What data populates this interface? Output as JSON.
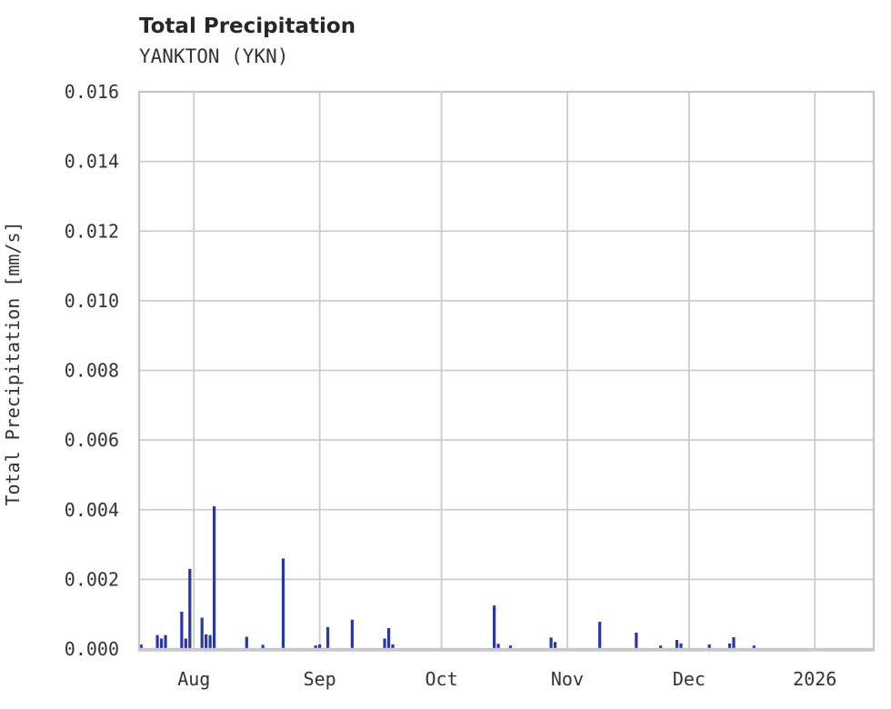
{
  "header": {
    "title": "Total Precipitation",
    "subtitle": "YANKTON (YKN)"
  },
  "colors": {
    "bar": "#2a35a6",
    "grid": "#cccccc",
    "spine": "#c6c6c6",
    "axis_bottom": "#c9c9c9",
    "title_text": "#262626",
    "tick_text": "#333333",
    "background": "#ffffff"
  },
  "chart_data": {
    "type": "bar",
    "title": "Total Precipitation",
    "subtitle": "YANKTON (YKN)",
    "station": "YANKTON (YKN)",
    "xlabel": "",
    "ylabel": "Total Precipitation [mm/s]",
    "unit": "mm/s",
    "grid": true,
    "legend": "none",
    "ylim": [
      0,
      0.016
    ],
    "y_ticks": [
      {
        "value": 0.0,
        "label": "0.000"
      },
      {
        "value": 0.002,
        "label": "0.002"
      },
      {
        "value": 0.004,
        "label": "0.004"
      },
      {
        "value": 0.006,
        "label": "0.006"
      },
      {
        "value": 0.008,
        "label": "0.008"
      },
      {
        "value": 0.01,
        "label": "0.010"
      },
      {
        "value": 0.012,
        "label": "0.012"
      },
      {
        "value": 0.014,
        "label": "0.014"
      },
      {
        "value": 0.016,
        "label": "0.016"
      }
    ],
    "x_domain": [
      "2025-07-18",
      "2026-01-15"
    ],
    "x_ticks": [
      {
        "date": "2025-08-01",
        "label": "Aug"
      },
      {
        "date": "2025-09-01",
        "label": "Sep"
      },
      {
        "date": "2025-10-01",
        "label": "Oct"
      },
      {
        "date": "2025-11-01",
        "label": "Nov"
      },
      {
        "date": "2025-12-01",
        "label": "Dec"
      },
      {
        "date": "2026-01-01",
        "label": "2026"
      }
    ],
    "points": [
      {
        "date": "2025-07-19",
        "value": 0.00013
      },
      {
        "date": "2025-07-23",
        "value": 0.0004
      },
      {
        "date": "2025-07-24",
        "value": 0.0003
      },
      {
        "date": "2025-07-25",
        "value": 0.0004
      },
      {
        "date": "2025-07-29",
        "value": 0.00107
      },
      {
        "date": "2025-07-30",
        "value": 0.0003
      },
      {
        "date": "2025-07-31",
        "value": 0.0023
      },
      {
        "date": "2025-08-03",
        "value": 0.0009
      },
      {
        "date": "2025-08-04",
        "value": 0.00042
      },
      {
        "date": "2025-08-05",
        "value": 0.0004
      },
      {
        "date": "2025-08-06",
        "value": 0.0041
      },
      {
        "date": "2025-08-14",
        "value": 0.00035
      },
      {
        "date": "2025-08-18",
        "value": 0.00012
      },
      {
        "date": "2025-08-23",
        "value": 0.0026
      },
      {
        "date": "2025-08-31",
        "value": 0.0001
      },
      {
        "date": "2025-09-01",
        "value": 0.00013
      },
      {
        "date": "2025-09-03",
        "value": 0.00063
      },
      {
        "date": "2025-09-09",
        "value": 0.00084
      },
      {
        "date": "2025-09-17",
        "value": 0.0003
      },
      {
        "date": "2025-09-18",
        "value": 0.0006
      },
      {
        "date": "2025-09-19",
        "value": 0.00013
      },
      {
        "date": "2025-10-14",
        "value": 0.00125
      },
      {
        "date": "2025-10-15",
        "value": 0.00015
      },
      {
        "date": "2025-10-18",
        "value": 0.0001
      },
      {
        "date": "2025-10-28",
        "value": 0.00033
      },
      {
        "date": "2025-10-29",
        "value": 0.0002
      },
      {
        "date": "2025-11-09",
        "value": 0.00078
      },
      {
        "date": "2025-11-18",
        "value": 0.00047
      },
      {
        "date": "2025-11-24",
        "value": 0.0001
      },
      {
        "date": "2025-11-28",
        "value": 0.00026
      },
      {
        "date": "2025-11-29",
        "value": 0.00016
      },
      {
        "date": "2025-12-06",
        "value": 0.00013
      },
      {
        "date": "2025-12-11",
        "value": 0.00016
      },
      {
        "date": "2025-12-12",
        "value": 0.00034
      },
      {
        "date": "2025-12-17",
        "value": 0.0001
      }
    ]
  }
}
